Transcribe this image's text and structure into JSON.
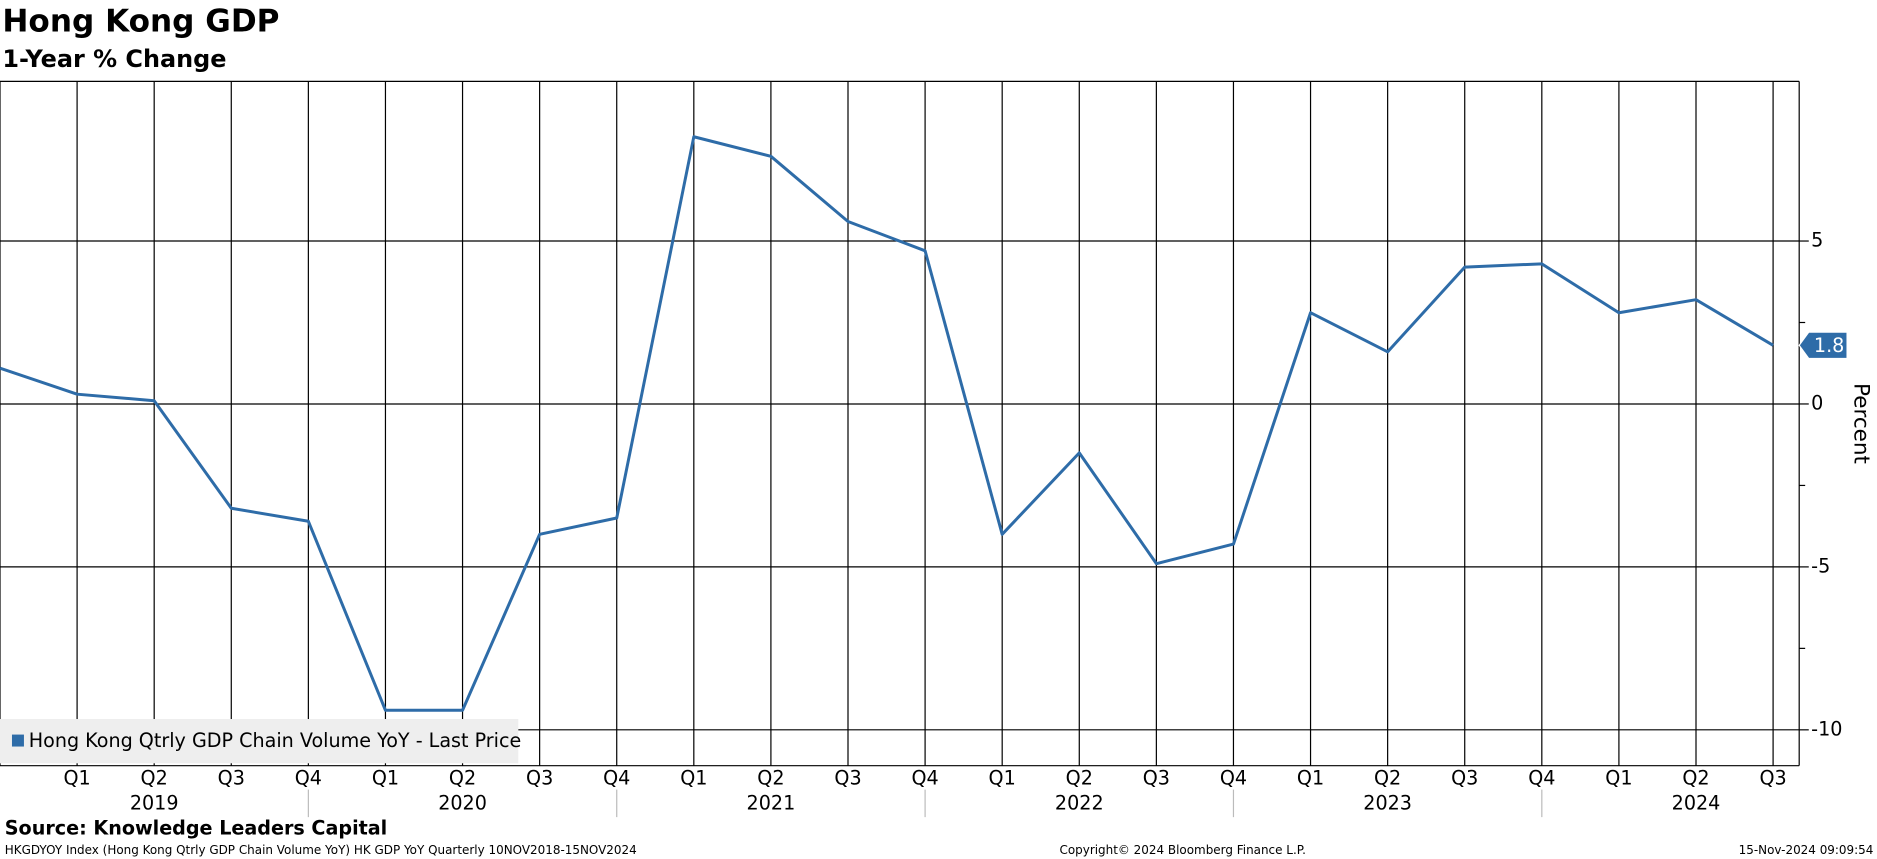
{
  "chart_data": {
    "type": "line",
    "title": "Hong Kong GDP",
    "subtitle": "1-Year % Change",
    "y_label": "Percent",
    "categories": [
      null,
      "Q1",
      "Q2",
      "Q3",
      "Q4",
      "Q1",
      "Q2",
      "Q3",
      "Q4",
      "Q1",
      "Q2",
      "Q3",
      "Q4",
      "Q1",
      "Q2",
      "Q3",
      "Q4",
      "Q1",
      "Q2",
      "Q3",
      "Q4",
      "Q1",
      "Q2",
      "Q3"
    ],
    "year_labels": [
      "2019",
      "2020",
      "2021",
      "2022",
      "2023",
      "2024"
    ],
    "series": [
      {
        "name": "Hong Kong Qtrly GDP Chain Volume YoY - Last Price",
        "color": "#2e6ca8",
        "values": [
          1.1,
          0.3,
          0.1,
          -3.2,
          -3.6,
          -9.4,
          -9.4,
          -4.0,
          -3.5,
          8.2,
          7.6,
          5.6,
          4.7,
          -4.0,
          -1.5,
          -4.9,
          -4.3,
          2.8,
          1.6,
          4.2,
          4.3,
          2.8,
          3.2,
          1.8
        ]
      }
    ],
    "ylim": [
      -11.1,
      9.9
    ],
    "yticks": [
      -10,
      -5,
      0,
      5
    ],
    "grid": true,
    "legend": "lower left",
    "source": "Source: Knowledge Leaders Capital",
    "footer_left": "HKGDYOY Index (Hong Kong Qtrly GDP Chain Volume YoY) HK GDP YoY  Quarterly 10NOV2018-15NOV2024",
    "footer_center": "Copyright© 2024 Bloomberg Finance L.P.",
    "footer_right": "15-Nov-2024 09:09:54"
  }
}
